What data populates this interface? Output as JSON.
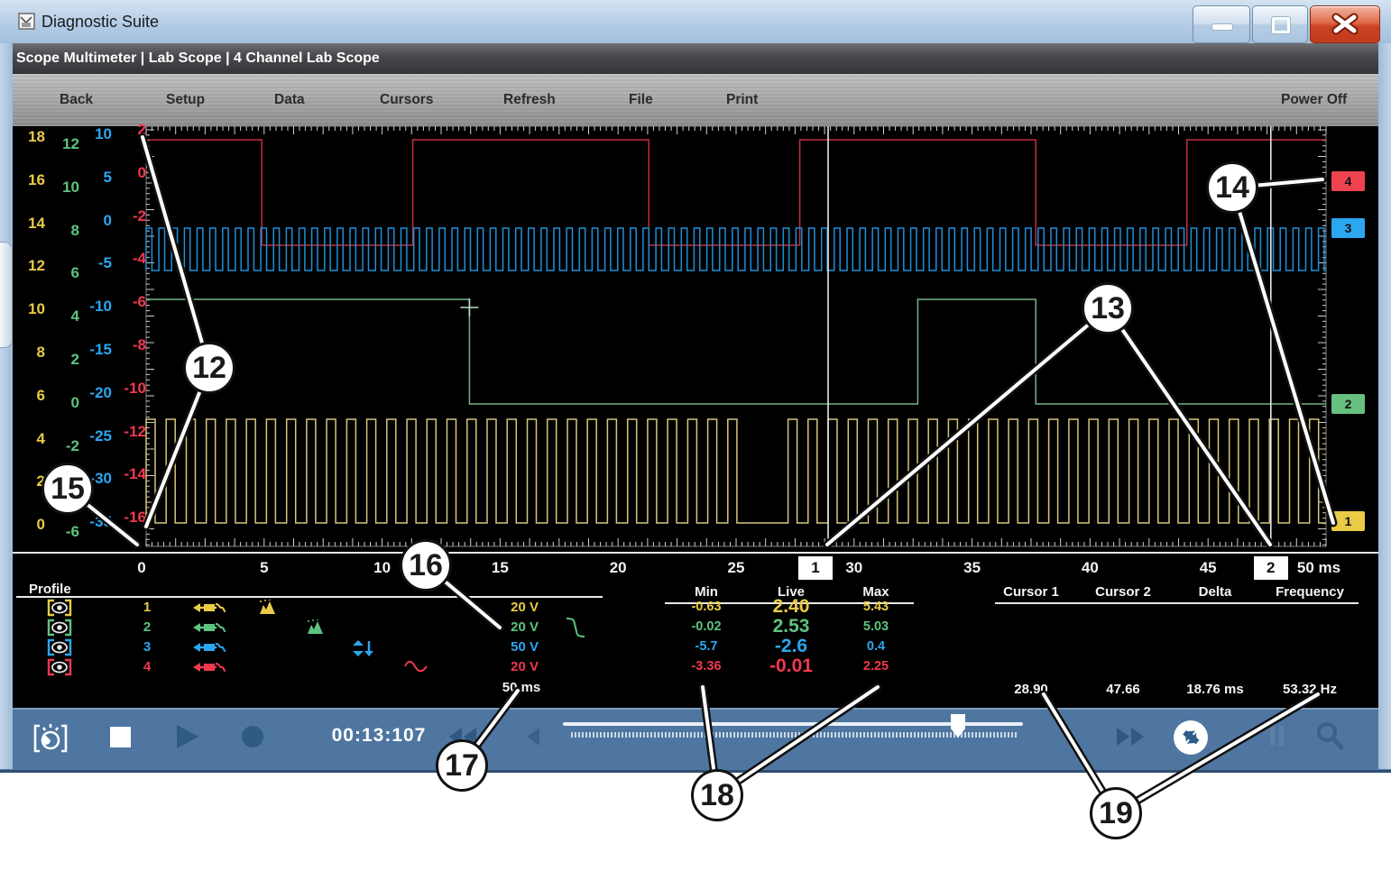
{
  "window": {
    "title": "Diagnostic Suite"
  },
  "breadcrumb": "Scope Multimeter | Lab Scope | 4 Channel Lab Scope",
  "toolbar": {
    "items": [
      {
        "id": "back",
        "label": "Back"
      },
      {
        "id": "setup",
        "label": "Setup"
      },
      {
        "id": "data",
        "label": "Data"
      },
      {
        "id": "cursors",
        "label": "Cursors"
      },
      {
        "id": "refresh",
        "label": "Refresh"
      },
      {
        "id": "file",
        "label": "File"
      },
      {
        "id": "print",
        "label": "Print"
      }
    ],
    "power": {
      "label": "Power Off"
    }
  },
  "scope": {
    "y_scales": [
      {
        "channel": 1,
        "color": "#e9cb45",
        "values": [
          "18",
          "16",
          "14",
          "12",
          "10",
          "8",
          "6",
          "4",
          "2",
          "0"
        ]
      },
      {
        "channel": 2,
        "color": "#5cc47e",
        "values": [
          "12",
          "10",
          "8",
          "6",
          "4",
          "2",
          "0",
          "-2",
          "-4",
          "-6"
        ]
      },
      {
        "channel": 3,
        "color": "#2ba7ef",
        "values": [
          "10",
          "5",
          "0",
          "-5",
          "-10",
          "-15",
          "-20",
          "-25",
          "-30",
          "-35"
        ]
      },
      {
        "channel": 4,
        "color": "#f0384e",
        "values": [
          "2",
          "0",
          "-2",
          "-4",
          "-6",
          "-8",
          "-10",
          "-12",
          "-14",
          "-16"
        ]
      }
    ],
    "x_axis": {
      "labels": [
        "0",
        "5",
        "10",
        "15",
        "20",
        "25",
        "30",
        "35",
        "40",
        "45"
      ],
      "end_label": "50 ms"
    },
    "cursor_flags": [
      {
        "label": "1",
        "time_ms": 28.9
      },
      {
        "label": "2",
        "time_ms": 47.66
      }
    ],
    "channel_tabs": [
      {
        "label": "4",
        "color": "#ef4450"
      },
      {
        "label": "3",
        "color": "#2ba7ef"
      },
      {
        "label": "2",
        "color": "#67c07f"
      },
      {
        "label": "1",
        "color": "#e9cb45"
      }
    ],
    "waveforms": [
      {
        "name": "channel-4",
        "color": "#c22f40",
        "type": "pulse",
        "high_segments_ms": [
          [
            0,
            4.9
          ],
          [
            11.3,
            21.3
          ],
          [
            27.7,
            37.7
          ],
          [
            44.1,
            50
          ]
        ]
      },
      {
        "name": "channel-3",
        "color": "#1f8fd8",
        "type": "square",
        "period_ms": 0.54,
        "duty": 0.45
      },
      {
        "name": "channel-2",
        "color": "#74b286",
        "type": "pulse",
        "high_segments_ms": [
          [
            0,
            13.7
          ],
          [
            32.7,
            37.7
          ]
        ],
        "marker_ms": 13.7
      },
      {
        "name": "channel-1",
        "color": "#d6c67c",
        "type": "square",
        "period_ms": 0.85,
        "duty": 0.45,
        "dropout_ms": [
          25.1,
          26.9
        ]
      }
    ]
  },
  "profile": {
    "title": "Profile",
    "rows": [
      {
        "channel": "1",
        "color": "#e9cb45",
        "scale": "20 V",
        "option_icon": "peak-detect-icon",
        "slot": 0
      },
      {
        "channel": "2",
        "color": "#5cc47e",
        "scale": "20 V",
        "option_icon": "peak-detect-icon",
        "slot": 1,
        "extra_icon": "falling-curve-icon"
      },
      {
        "channel": "3",
        "color": "#2ba7ef",
        "scale": "50 V",
        "option_icon": "scale-arrows-icon",
        "slot": 2
      },
      {
        "channel": "4",
        "color": "#f0384e",
        "scale": "20 V",
        "option_icon": "sine-icon",
        "slot": 3
      }
    ],
    "sweep": "50 ms"
  },
  "measurements": {
    "columns": [
      "Min",
      "Live",
      "Max"
    ],
    "rows": [
      {
        "channel": "1",
        "color": "#e9cb45",
        "min": "-0.63",
        "live": "2.40",
        "max": "5.43"
      },
      {
        "channel": "2",
        "color": "#5cc47e",
        "min": "-0.02",
        "live": "2.53",
        "max": "5.03"
      },
      {
        "channel": "3",
        "color": "#2ba7ef",
        "min": "-5.7",
        "live": "-2.6",
        "max": "0.4"
      },
      {
        "channel": "4",
        "color": "#f0384e",
        "min": "-3.36",
        "live": "-0.01",
        "max": "2.25"
      }
    ],
    "cursor_columns": [
      "Cursor 1",
      "Cursor 2",
      "Delta",
      "Frequency"
    ],
    "cursor_values": [
      "28.90",
      "47.66",
      "18.76 ms",
      "53.32 Hz"
    ]
  },
  "playback": {
    "time": "00:13:107"
  },
  "callouts": [
    {
      "label": "12"
    },
    {
      "label": "13"
    },
    {
      "label": "14"
    },
    {
      "label": "15"
    },
    {
      "label": "16"
    },
    {
      "label": "17"
    },
    {
      "label": "18"
    },
    {
      "label": "19"
    }
  ]
}
